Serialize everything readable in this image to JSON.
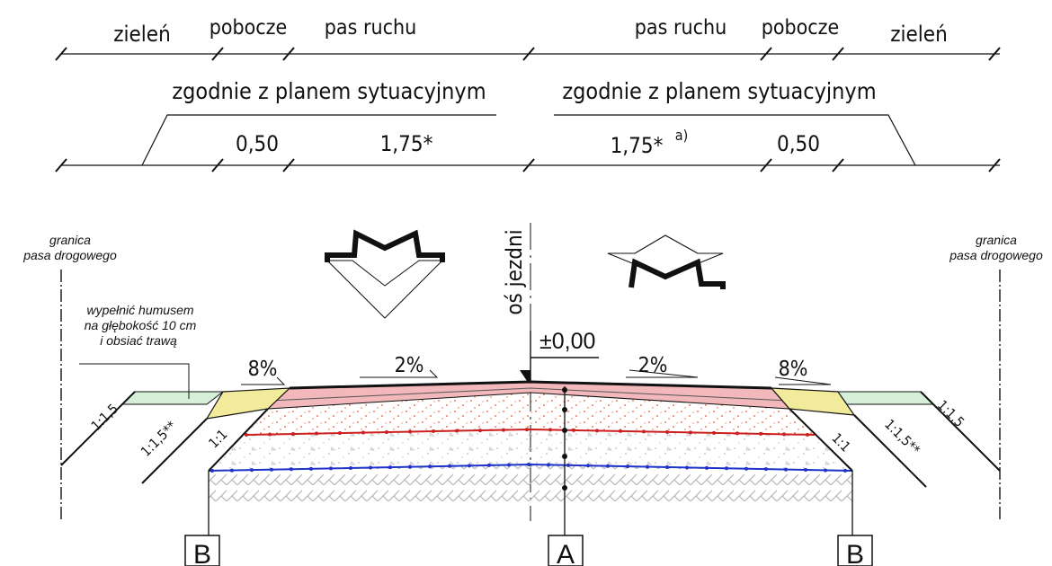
{
  "top": {
    "labels_left": {
      "greenery": "zieleń",
      "shoulder": "pobocze",
      "lane": "pas ruchu"
    },
    "labels_right": {
      "lane": "pas ruchu",
      "shoulder": "pobocze",
      "greenery": "zieleń"
    },
    "situational_left": "zgodnie z planem sytuacyjnym",
    "situational_right": "zgodnie z planem sytuacyjnym",
    "dim_shoulder_left": "0,50",
    "dim_lane_left": "1,75*",
    "dim_lane_right": "1,75*",
    "dim_lane_right_sup": "a)",
    "dim_shoulder_right": "0,50"
  },
  "section": {
    "boundary_left_line1": "granica",
    "boundary_left_line2": "pasa drogowego",
    "boundary_right_line1": "granica",
    "boundary_right_line2": "pasa drogowego",
    "axis_label": "oś jezdni",
    "note_line1": "wypełnić humusem",
    "note_line2": "na głębokość 10 cm",
    "note_line3": "i obsiać trawą",
    "level": "±0,00",
    "slope_shoulder_left": "8%",
    "slope_lane_left": "2%",
    "slope_lane_right": "2%",
    "slope_shoulder_right": "8%",
    "ratio_outer_left": "1:1,5",
    "ratio_ditch_left": "1:1,5**",
    "ratio_inner_left": "1:1",
    "ratio_inner_right": "1:1",
    "ratio_ditch_right": "1:1,5**",
    "ratio_outer_right": "1:1,5",
    "marker_left": "B",
    "marker_center": "A",
    "marker_right": "B"
  },
  "colors": {
    "wearing_course": "#f2b8bc",
    "shoulder_fill": "#f3eb9c",
    "greenery_fill": "#d6efd9",
    "aggregate_dots": "#e8542a",
    "red_layer": "#cc1f1f",
    "blue_layer": "#1f33cc",
    "soil_hatch": "#b5b5b5"
  }
}
